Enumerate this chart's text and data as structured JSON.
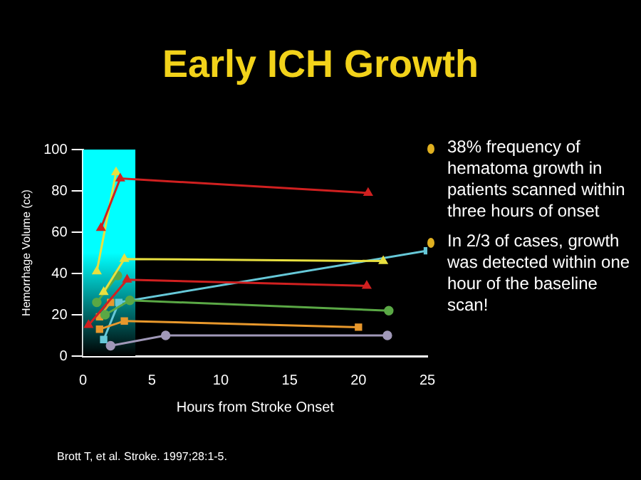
{
  "chart_data": {
    "type": "line",
    "title": "Early ICH Growth",
    "xlabel": "Hours from Stroke Onset",
    "ylabel": "Hemorrhage Volume (cc)",
    "xlim": [
      0,
      25
    ],
    "xticks": [
      0,
      5,
      10,
      15,
      20,
      25
    ],
    "ylim": [
      0,
      100
    ],
    "yticks": [
      0,
      20,
      40,
      60,
      80,
      100
    ],
    "grid": false,
    "legend": false,
    "bands": [
      {
        "axis": "x",
        "from": 0,
        "to": 3.8,
        "color": "#00ffff"
      }
    ],
    "series": [
      {
        "color": "#d02020",
        "marker": "triangle",
        "x": [
          1.3,
          2.7,
          20.7
        ],
        "values": [
          62,
          86,
          79
        ]
      },
      {
        "color": "#d02020",
        "marker": "triangle",
        "x": [
          0.4,
          3.2,
          20.6
        ],
        "values": [
          15,
          37,
          34
        ]
      },
      {
        "color": "#e8e040",
        "marker": "triangle",
        "x": [
          1.0,
          2.4
        ],
        "values": [
          41,
          89
        ]
      },
      {
        "color": "#e8e040",
        "marker": "triangle",
        "x": [
          1.5,
          3.0,
          21.8
        ],
        "values": [
          31,
          47,
          46
        ]
      },
      {
        "color": "#5aa845",
        "marker": "circle",
        "x": [
          1.0,
          2.5
        ],
        "values": [
          26,
          39
        ]
      },
      {
        "color": "#5aa845",
        "marker": "circle",
        "x": [
          1.6,
          3.4,
          22.2
        ],
        "values": [
          20,
          27,
          22
        ]
      },
      {
        "color": "#e8982c",
        "marker": "square",
        "x": [
          1.2,
          2.0
        ],
        "values": [
          19,
          26
        ]
      },
      {
        "color": "#e8982c",
        "marker": "square",
        "x": [
          1.2,
          3.0,
          20.0
        ],
        "values": [
          13,
          17,
          14
        ]
      },
      {
        "color": "#66c8d8",
        "marker": "square",
        "x": [
          1.5,
          2.6,
          25
        ],
        "values": [
          8,
          26,
          51
        ]
      },
      {
        "color": "#a098b8",
        "marker": "circle",
        "x": [
          2.0,
          6.0,
          22.1
        ],
        "values": [
          5,
          10,
          10
        ]
      }
    ],
    "annotations": [
      "38% frequency of hematoma growth in patients scanned within three hours of onset",
      "In 2/3 of cases, growth was detected within one hour of the baseline scan!",
      "Brott T, et al. Stroke. 1997;28:1-5."
    ]
  }
}
